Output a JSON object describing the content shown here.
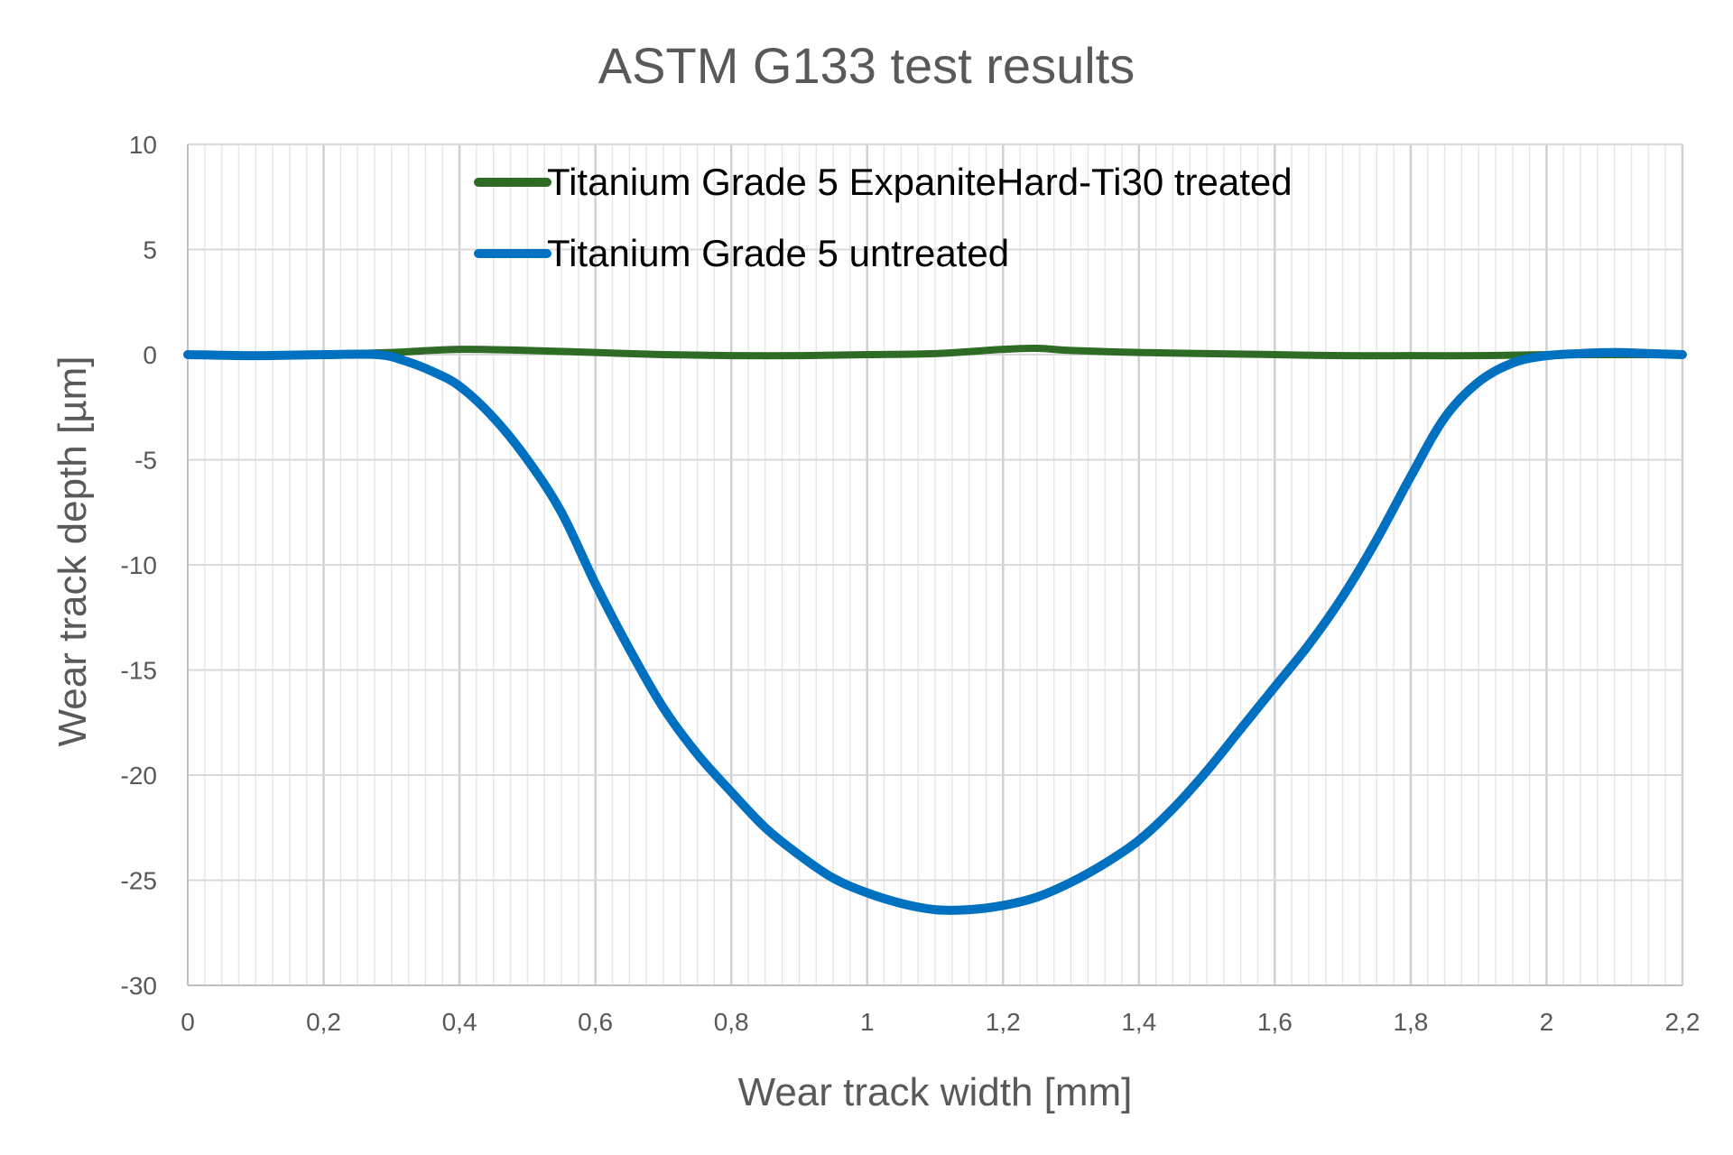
{
  "chart_data": {
    "type": "line",
    "title": "ASTM G133 test results",
    "xlabel": "Wear track width [mm]",
    "ylabel": "Wear track depth [µm]",
    "xlim": [
      0,
      2.2
    ],
    "ylim": [
      -30,
      10
    ],
    "x_ticks": [
      0,
      0.2,
      0.4,
      0.6,
      0.8,
      1,
      1.2,
      1.4,
      1.6,
      1.8,
      2,
      2.2
    ],
    "x_tick_labels": [
      "0",
      "0,2",
      "0,4",
      "0,6",
      "0,8",
      "1",
      "1,2",
      "1,4",
      "1,6",
      "1,8",
      "2",
      "2,2"
    ],
    "y_ticks": [
      10,
      5,
      0,
      -5,
      -10,
      -15,
      -20,
      -25,
      -30
    ],
    "y_tick_labels": [
      "10",
      "5",
      "0",
      "-5",
      "-10",
      "-15",
      "-20",
      "-25",
      "-30"
    ],
    "grid": true,
    "minor_grid": true,
    "legend_position": "top-center",
    "series": [
      {
        "name": "Titanium Grade 5 ExpaniteHard-Ti30 treated",
        "color": "#2e6b25",
        "points": [
          [
            0.0,
            0.0
          ],
          [
            0.1,
            -0.05
          ],
          [
            0.2,
            0.0
          ],
          [
            0.3,
            0.1
          ],
          [
            0.4,
            0.25
          ],
          [
            0.5,
            0.2
          ],
          [
            0.6,
            0.1
          ],
          [
            0.7,
            0.0
          ],
          [
            0.8,
            -0.05
          ],
          [
            0.9,
            -0.05
          ],
          [
            1.0,
            0.0
          ],
          [
            1.1,
            0.05
          ],
          [
            1.2,
            0.25
          ],
          [
            1.25,
            0.3
          ],
          [
            1.3,
            0.2
          ],
          [
            1.4,
            0.1
          ],
          [
            1.5,
            0.05
          ],
          [
            1.6,
            0.0
          ],
          [
            1.7,
            -0.05
          ],
          [
            1.8,
            -0.05
          ],
          [
            1.9,
            -0.05
          ],
          [
            2.0,
            0.0
          ],
          [
            2.1,
            0.0
          ],
          [
            2.2,
            0.0
          ]
        ]
      },
      {
        "name": "Titanium Grade 5 untreated",
        "color": "#0070c0",
        "points": [
          [
            0.0,
            0.0
          ],
          [
            0.1,
            -0.05
          ],
          [
            0.2,
            0.0
          ],
          [
            0.28,
            0.0
          ],
          [
            0.32,
            -0.3
          ],
          [
            0.36,
            -0.8
          ],
          [
            0.4,
            -1.5
          ],
          [
            0.45,
            -3.0
          ],
          [
            0.5,
            -5.0
          ],
          [
            0.55,
            -7.5
          ],
          [
            0.6,
            -10.9
          ],
          [
            0.65,
            -14.0
          ],
          [
            0.7,
            -16.8
          ],
          [
            0.75,
            -19.0
          ],
          [
            0.8,
            -20.8
          ],
          [
            0.85,
            -22.5
          ],
          [
            0.9,
            -23.8
          ],
          [
            0.95,
            -24.9
          ],
          [
            1.0,
            -25.6
          ],
          [
            1.05,
            -26.1
          ],
          [
            1.1,
            -26.4
          ],
          [
            1.15,
            -26.4
          ],
          [
            1.2,
            -26.2
          ],
          [
            1.25,
            -25.8
          ],
          [
            1.3,
            -25.1
          ],
          [
            1.35,
            -24.2
          ],
          [
            1.4,
            -23.1
          ],
          [
            1.45,
            -21.6
          ],
          [
            1.5,
            -19.8
          ],
          [
            1.55,
            -17.8
          ],
          [
            1.6,
            -15.8
          ],
          [
            1.65,
            -13.8
          ],
          [
            1.7,
            -11.5
          ],
          [
            1.75,
            -8.8
          ],
          [
            1.8,
            -5.8
          ],
          [
            1.85,
            -3.0
          ],
          [
            1.9,
            -1.3
          ],
          [
            1.95,
            -0.4
          ],
          [
            2.0,
            -0.05
          ],
          [
            2.05,
            0.05
          ],
          [
            2.1,
            0.1
          ],
          [
            2.15,
            0.05
          ],
          [
            2.2,
            0.0
          ]
        ]
      }
    ]
  }
}
